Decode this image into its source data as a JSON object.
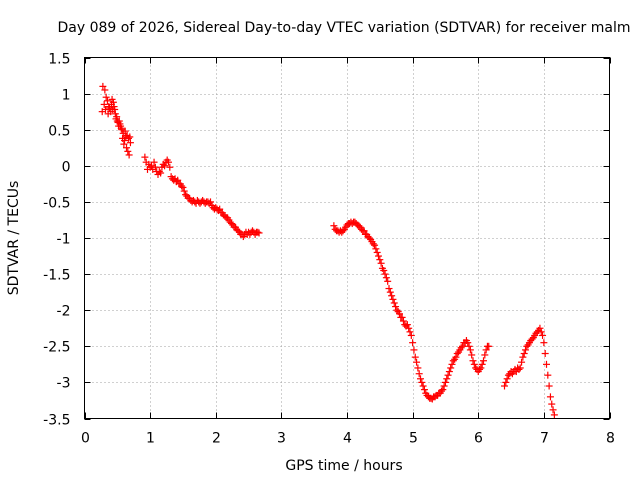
{
  "chart_data": {
    "type": "scatter",
    "title": "Day 089 of 2026, Sidereal Day-to-day VTEC variation (SDTVAR) for receiver malm",
    "xlabel": "GPS time / hours",
    "ylabel": "SDTVAR / TECUs",
    "xlim": [
      0,
      8
    ],
    "ylim": [
      -3.5,
      1.5
    ],
    "xticks": [
      0,
      1,
      2,
      3,
      4,
      5,
      6,
      7,
      8
    ],
    "yticks": [
      1.5,
      1,
      0.5,
      0,
      -0.5,
      -1,
      -1.5,
      -2,
      -2.5,
      -3,
      -3.5
    ],
    "xtick_labels": [
      "0",
      "1",
      "2",
      "3",
      "4",
      "5",
      "6",
      "7",
      "8"
    ],
    "ytick_labels": [
      "1.5",
      "1",
      "0.5",
      "0",
      "-0.5",
      "-1",
      "-1.5",
      "-2",
      "-2.5",
      "-3",
      "-3.5"
    ],
    "grid": true,
    "marker": "plus",
    "color": "#ff0000",
    "series": [
      {
        "name": "SDTVAR",
        "points": [
          [
            0.27,
            0.75
          ],
          [
            0.28,
            1.1
          ],
          [
            0.3,
            0.85
          ],
          [
            0.31,
            1.05
          ],
          [
            0.32,
            0.78
          ],
          [
            0.33,
            0.95
          ],
          [
            0.35,
            0.9
          ],
          [
            0.36,
            0.72
          ],
          [
            0.37,
            0.82
          ],
          [
            0.38,
            0.8
          ],
          [
            0.4,
            0.75
          ],
          [
            0.41,
            0.85
          ],
          [
            0.42,
            0.92
          ],
          [
            0.43,
            0.78
          ],
          [
            0.44,
            0.88
          ],
          [
            0.45,
            0.82
          ],
          [
            0.46,
            0.78
          ],
          [
            0.47,
            0.72
          ],
          [
            0.48,
            0.65
          ],
          [
            0.49,
            0.68
          ],
          [
            0.5,
            0.62
          ],
          [
            0.51,
            0.6
          ],
          [
            0.52,
            0.55
          ],
          [
            0.53,
            0.62
          ],
          [
            0.54,
            0.58
          ],
          [
            0.55,
            0.55
          ],
          [
            0.56,
            0.52
          ],
          [
            0.57,
            0.5
          ],
          [
            0.58,
            0.38
          ],
          [
            0.59,
            0.45
          ],
          [
            0.6,
            0.3
          ],
          [
            0.61,
            0.35
          ],
          [
            0.62,
            0.48
          ],
          [
            0.63,
            0.4
          ],
          [
            0.64,
            0.25
          ],
          [
            0.65,
            0.42
          ],
          [
            0.66,
            0.2
          ],
          [
            0.67,
            0.38
          ],
          [
            0.68,
            0.15
          ],
          [
            0.69,
            0.4
          ],
          [
            0.7,
            0.32
          ],
          [
            0.92,
            0.12
          ],
          [
            0.94,
            0.05
          ],
          [
            0.96,
            -0.05
          ],
          [
            0.98,
            0.02
          ],
          [
            1.0,
            -0.02
          ],
          [
            1.02,
            0.0
          ],
          [
            1.04,
            -0.05
          ],
          [
            1.06,
            0.05
          ],
          [
            1.08,
            -0.02
          ],
          [
            1.1,
            -0.08
          ],
          [
            1.12,
            -0.12
          ],
          [
            1.14,
            -0.08
          ],
          [
            1.16,
            -0.1
          ],
          [
            1.18,
            -0.02
          ],
          [
            1.2,
            0.02
          ],
          [
            1.22,
            0.0
          ],
          [
            1.24,
            0.05
          ],
          [
            1.26,
            0.08
          ],
          [
            1.28,
            0.05
          ],
          [
            1.3,
            -0.02
          ],
          [
            1.32,
            -0.15
          ],
          [
            1.34,
            -0.18
          ],
          [
            1.36,
            -0.2
          ],
          [
            1.38,
            -0.18
          ],
          [
            1.4,
            -0.22
          ],
          [
            1.42,
            -0.2
          ],
          [
            1.44,
            -0.25
          ],
          [
            1.46,
            -0.25
          ],
          [
            1.48,
            -0.28
          ],
          [
            1.5,
            -0.3
          ],
          [
            1.52,
            -0.35
          ],
          [
            1.54,
            -0.4
          ],
          [
            1.56,
            -0.42
          ],
          [
            1.58,
            -0.45
          ],
          [
            1.6,
            -0.45
          ],
          [
            1.62,
            -0.48
          ],
          [
            1.64,
            -0.5
          ],
          [
            1.66,
            -0.48
          ],
          [
            1.68,
            -0.5
          ],
          [
            1.7,
            -0.52
          ],
          [
            1.72,
            -0.48
          ],
          [
            1.74,
            -0.5
          ],
          [
            1.76,
            -0.52
          ],
          [
            1.78,
            -0.5
          ],
          [
            1.8,
            -0.48
          ],
          [
            1.82,
            -0.5
          ],
          [
            1.84,
            -0.52
          ],
          [
            1.86,
            -0.5
          ],
          [
            1.88,
            -0.5
          ],
          [
            1.9,
            -0.52
          ],
          [
            1.92,
            -0.5
          ],
          [
            1.94,
            -0.55
          ],
          [
            1.96,
            -0.58
          ],
          [
            1.98,
            -0.6
          ],
          [
            2.0,
            -0.58
          ],
          [
            2.02,
            -0.6
          ],
          [
            2.04,
            -0.62
          ],
          [
            2.06,
            -0.6
          ],
          [
            2.08,
            -0.65
          ],
          [
            2.1,
            -0.65
          ],
          [
            2.12,
            -0.68
          ],
          [
            2.14,
            -0.7
          ],
          [
            2.16,
            -0.72
          ],
          [
            2.18,
            -0.72
          ],
          [
            2.2,
            -0.75
          ],
          [
            2.22,
            -0.78
          ],
          [
            2.24,
            -0.8
          ],
          [
            2.26,
            -0.82
          ],
          [
            2.28,
            -0.85
          ],
          [
            2.3,
            -0.85
          ],
          [
            2.32,
            -0.88
          ],
          [
            2.34,
            -0.9
          ],
          [
            2.36,
            -0.92
          ],
          [
            2.38,
            -0.95
          ],
          [
            2.4,
            -0.95
          ],
          [
            2.42,
            -0.98
          ],
          [
            2.44,
            -0.95
          ],
          [
            2.46,
            -0.92
          ],
          [
            2.48,
            -0.95
          ],
          [
            2.5,
            -0.92
          ],
          [
            2.52,
            -0.95
          ],
          [
            2.54,
            -0.92
          ],
          [
            2.56,
            -0.9
          ],
          [
            2.58,
            -0.92
          ],
          [
            2.6,
            -0.95
          ],
          [
            2.62,
            -0.92
          ],
          [
            2.64,
            -0.92
          ],
          [
            2.66,
            -0.93
          ],
          [
            3.8,
            -0.83
          ],
          [
            3.82,
            -0.88
          ],
          [
            3.84,
            -0.9
          ],
          [
            3.86,
            -0.9
          ],
          [
            3.88,
            -0.92
          ],
          [
            3.9,
            -0.9
          ],
          [
            3.92,
            -0.92
          ],
          [
            3.94,
            -0.9
          ],
          [
            3.96,
            -0.88
          ],
          [
            3.98,
            -0.85
          ],
          [
            4.0,
            -0.82
          ],
          [
            4.02,
            -0.8
          ],
          [
            4.04,
            -0.8
          ],
          [
            4.06,
            -0.78
          ],
          [
            4.08,
            -0.8
          ],
          [
            4.1,
            -0.78
          ],
          [
            4.12,
            -0.78
          ],
          [
            4.14,
            -0.8
          ],
          [
            4.16,
            -0.82
          ],
          [
            4.18,
            -0.83
          ],
          [
            4.2,
            -0.85
          ],
          [
            4.22,
            -0.88
          ],
          [
            4.24,
            -0.9
          ],
          [
            4.26,
            -0.9
          ],
          [
            4.28,
            -0.95
          ],
          [
            4.3,
            -0.95
          ],
          [
            4.32,
            -0.98
          ],
          [
            4.34,
            -1.0
          ],
          [
            4.36,
            -1.02
          ],
          [
            4.38,
            -1.05
          ],
          [
            4.4,
            -1.08
          ],
          [
            4.42,
            -1.1
          ],
          [
            4.44,
            -1.15
          ],
          [
            4.46,
            -1.2
          ],
          [
            4.48,
            -1.25
          ],
          [
            4.5,
            -1.3
          ],
          [
            4.52,
            -1.35
          ],
          [
            4.54,
            -1.42
          ],
          [
            4.56,
            -1.45
          ],
          [
            4.58,
            -1.5
          ],
          [
            4.6,
            -1.55
          ],
          [
            4.62,
            -1.6
          ],
          [
            4.64,
            -1.7
          ],
          [
            4.66,
            -1.75
          ],
          [
            4.68,
            -1.8
          ],
          [
            4.7,
            -1.85
          ],
          [
            4.72,
            -1.9
          ],
          [
            4.74,
            -1.95
          ],
          [
            4.76,
            -2.0
          ],
          [
            4.78,
            -2.02
          ],
          [
            4.8,
            -2.05
          ],
          [
            4.82,
            -2.1
          ],
          [
            4.84,
            -2.1
          ],
          [
            4.86,
            -2.15
          ],
          [
            4.88,
            -2.2
          ],
          [
            4.9,
            -2.22
          ],
          [
            4.92,
            -2.2
          ],
          [
            4.94,
            -2.25
          ],
          [
            4.96,
            -2.3
          ],
          [
            4.98,
            -2.35
          ],
          [
            5.0,
            -2.45
          ],
          [
            5.02,
            -2.55
          ],
          [
            5.04,
            -2.65
          ],
          [
            5.06,
            -2.72
          ],
          [
            5.08,
            -2.8
          ],
          [
            5.1,
            -2.88
          ],
          [
            5.12,
            -2.95
          ],
          [
            5.14,
            -3.0
          ],
          [
            5.16,
            -3.05
          ],
          [
            5.18,
            -3.1
          ],
          [
            5.2,
            -3.15
          ],
          [
            5.22,
            -3.18
          ],
          [
            5.24,
            -3.2
          ],
          [
            5.26,
            -3.22
          ],
          [
            5.28,
            -3.22
          ],
          [
            5.3,
            -3.23
          ],
          [
            5.32,
            -3.2
          ],
          [
            5.34,
            -3.2
          ],
          [
            5.36,
            -3.18
          ],
          [
            5.38,
            -3.18
          ],
          [
            5.4,
            -3.15
          ],
          [
            5.42,
            -3.15
          ],
          [
            5.44,
            -3.12
          ],
          [
            5.46,
            -3.1
          ],
          [
            5.48,
            -3.05
          ],
          [
            5.5,
            -3.0
          ],
          [
            5.52,
            -2.95
          ],
          [
            5.54,
            -2.9
          ],
          [
            5.56,
            -2.85
          ],
          [
            5.58,
            -2.8
          ],
          [
            5.6,
            -2.75
          ],
          [
            5.62,
            -2.7
          ],
          [
            5.64,
            -2.68
          ],
          [
            5.66,
            -2.65
          ],
          [
            5.68,
            -2.6
          ],
          [
            5.7,
            -2.58
          ],
          [
            5.72,
            -2.55
          ],
          [
            5.74,
            -2.52
          ],
          [
            5.76,
            -2.5
          ],
          [
            5.78,
            -2.45
          ],
          [
            5.8,
            -2.45
          ],
          [
            5.82,
            -2.42
          ],
          [
            5.84,
            -2.45
          ],
          [
            5.86,
            -2.5
          ],
          [
            5.88,
            -2.55
          ],
          [
            5.9,
            -2.62
          ],
          [
            5.92,
            -2.7
          ],
          [
            5.94,
            -2.75
          ],
          [
            5.96,
            -2.8
          ],
          [
            5.98,
            -2.82
          ],
          [
            6.0,
            -2.85
          ],
          [
            6.02,
            -2.82
          ],
          [
            6.04,
            -2.8
          ],
          [
            6.06,
            -2.75
          ],
          [
            6.08,
            -2.7
          ],
          [
            6.1,
            -2.62
          ],
          [
            6.12,
            -2.55
          ],
          [
            6.14,
            -2.5
          ],
          [
            6.16,
            -2.5
          ],
          [
            6.4,
            -3.05
          ],
          [
            6.42,
            -3.0
          ],
          [
            6.44,
            -2.95
          ],
          [
            6.46,
            -2.9
          ],
          [
            6.48,
            -2.88
          ],
          [
            6.5,
            -2.85
          ],
          [
            6.52,
            -2.88
          ],
          [
            6.54,
            -2.85
          ],
          [
            6.56,
            -2.82
          ],
          [
            6.58,
            -2.85
          ],
          [
            6.6,
            -2.8
          ],
          [
            6.62,
            -2.82
          ],
          [
            6.64,
            -2.8
          ],
          [
            6.66,
            -2.72
          ],
          [
            6.68,
            -2.65
          ],
          [
            6.7,
            -2.6
          ],
          [
            6.72,
            -2.55
          ],
          [
            6.74,
            -2.5
          ],
          [
            6.76,
            -2.48
          ],
          [
            6.78,
            -2.45
          ],
          [
            6.8,
            -2.42
          ],
          [
            6.82,
            -2.4
          ],
          [
            6.84,
            -2.38
          ],
          [
            6.86,
            -2.35
          ],
          [
            6.88,
            -2.32
          ],
          [
            6.9,
            -2.3
          ],
          [
            6.92,
            -2.28
          ],
          [
            6.94,
            -2.25
          ],
          [
            6.96,
            -2.3
          ],
          [
            6.98,
            -2.35
          ],
          [
            7.0,
            -2.45
          ],
          [
            7.02,
            -2.6
          ],
          [
            7.04,
            -2.75
          ],
          [
            7.06,
            -2.9
          ],
          [
            7.08,
            -3.05
          ],
          [
            7.1,
            -3.2
          ],
          [
            7.12,
            -3.3
          ],
          [
            7.14,
            -3.38
          ],
          [
            7.16,
            -3.45
          ]
        ]
      }
    ]
  }
}
